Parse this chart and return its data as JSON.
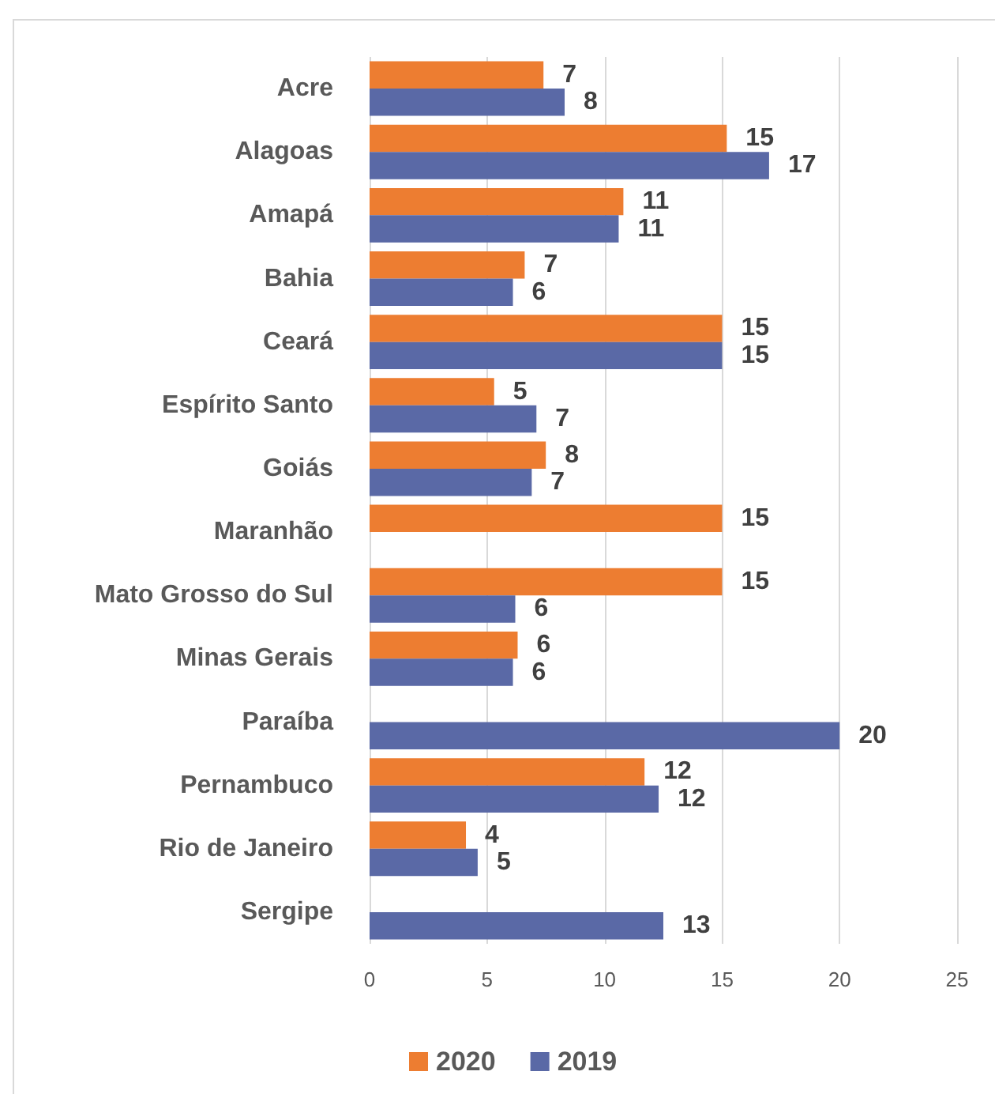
{
  "chart_data": {
    "type": "bar",
    "orientation": "horizontal",
    "categories": [
      "Acre",
      "Alagoas",
      "Amapá",
      "Bahia",
      "Ceará",
      "Espírito Santo",
      "Goiás",
      "Maranhão",
      "Mato Grosso do Sul",
      "Minas Gerais",
      "Paraíba",
      "Pernambuco",
      "Rio de Janeiro",
      "Sergipe"
    ],
    "series": [
      {
        "name": "2020",
        "color": "#ed7d31",
        "values": [
          7.4,
          15.2,
          10.8,
          6.6,
          15.0,
          5.3,
          7.5,
          15.0,
          15.0,
          6.3,
          null,
          11.7,
          4.1,
          null
        ],
        "value_labels": [
          "7",
          "15",
          "11",
          "7",
          "15",
          "5",
          "8",
          "15",
          "15",
          "6",
          null,
          "12",
          "4",
          null
        ]
      },
      {
        "name": "2019",
        "color": "#5a69a6",
        "values": [
          8.3,
          17.0,
          10.6,
          6.1,
          15.0,
          7.1,
          6.9,
          null,
          6.2,
          6.1,
          20.0,
          12.3,
          4.6,
          12.5
        ],
        "value_labels": [
          "8",
          "17",
          "11",
          "6",
          "15",
          "7",
          "7",
          null,
          "6",
          "6",
          "20",
          "12",
          "5",
          "13"
        ]
      }
    ],
    "xlim": [
      0,
      25
    ],
    "xticks": [
      0,
      5,
      10,
      15,
      20,
      25
    ],
    "grid": "x",
    "legend": "bottom"
  }
}
